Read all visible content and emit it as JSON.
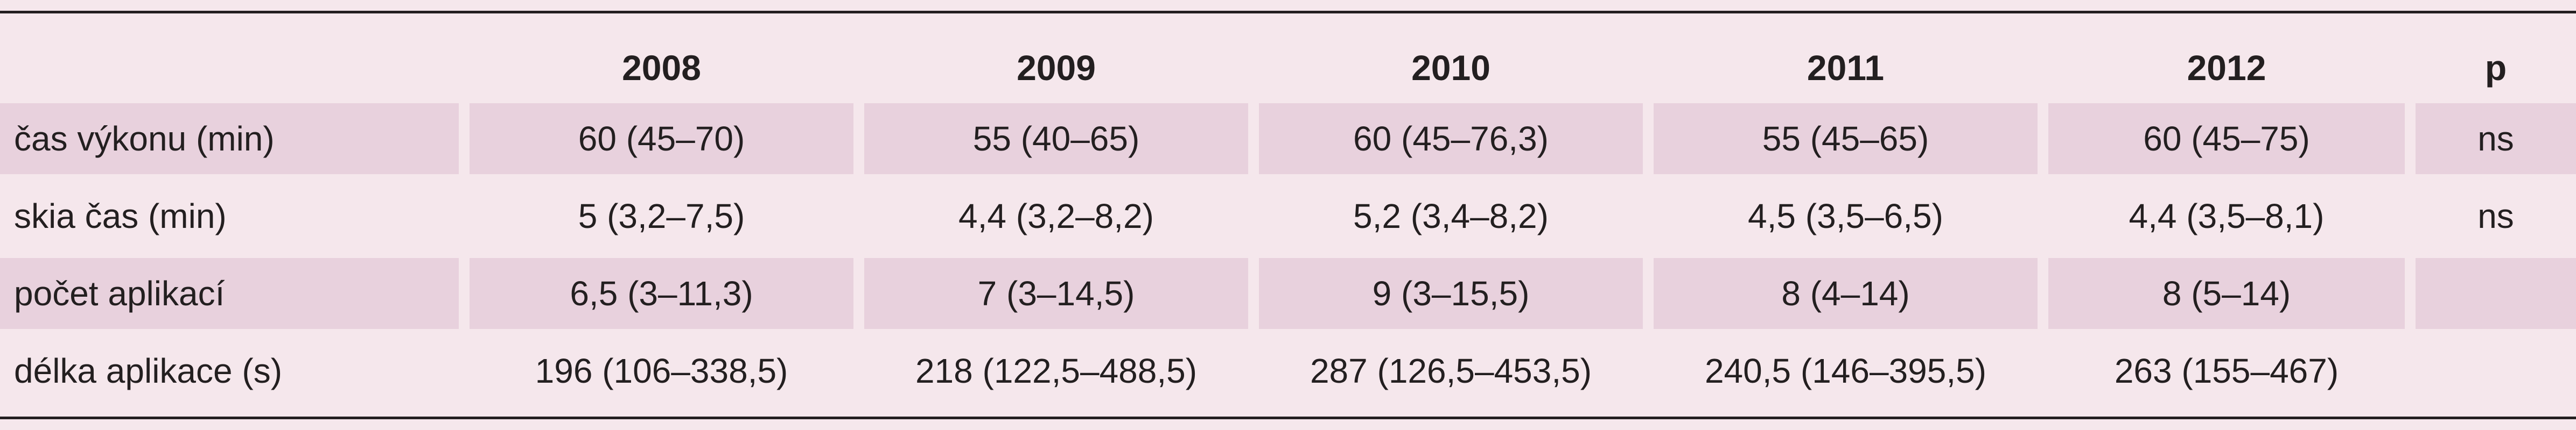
{
  "header": {
    "label": "",
    "years": [
      "2008",
      "2009",
      "2010",
      "2011",
      "2012"
    ],
    "p": "p"
  },
  "rows": [
    {
      "label": "čas výkonu (min)",
      "values": [
        "60 (45–70)",
        "55 (40–65)",
        "60 (45–76,3)",
        "55 (45–65)",
        "60 (45–75)"
      ],
      "p": "ns"
    },
    {
      "label": "skia čas (min)",
      "values": [
        "5 (3,2–7,5)",
        "4,4 (3,2–8,2)",
        "5,2 (3,4–8,2)",
        "4,5 (3,5–6,5)",
        "4,4 (3,5–8,1)"
      ],
      "p": "ns"
    },
    {
      "label": "počet aplikací",
      "values": [
        "6,5 (3–11,3)",
        "7 (3–14,5)",
        "9 (3–15,5)",
        "8 (4–14)",
        "8 (5–14)"
      ],
      "p": ""
    },
    {
      "label": "délka aplikace (s)",
      "values": [
        "196 (106–338,5)",
        "218 (122,5–488,5)",
        "287 (126,5–453,5)",
        "240,5 (146–395,5)",
        "263 (155–467)"
      ],
      "p": ""
    }
  ],
  "colors": {
    "background": "#f5e7ec",
    "row_shade": "#e8d1dd",
    "text": "#231f20"
  }
}
